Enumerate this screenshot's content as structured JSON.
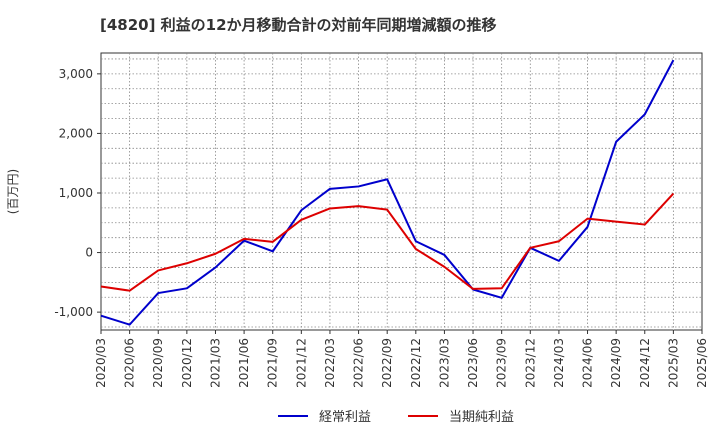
{
  "chart_data": {
    "type": "line",
    "title": "[4820]  利益の12か月移動合計の対前年同期増減額の推移",
    "ylabel": "(百万円)",
    "xlabel": "",
    "ylim": [
      -1300,
      3350
    ],
    "yticks": [
      -1000,
      0,
      1000,
      2000,
      3000
    ],
    "ytick_labels": [
      "-1,000",
      "0",
      "1,000",
      "2,000",
      "3,000"
    ],
    "categories": [
      "2020/03",
      "2020/06",
      "2020/09",
      "2020/12",
      "2021/03",
      "2021/06",
      "2021/09",
      "2021/12",
      "2022/03",
      "2022/06",
      "2022/09",
      "2022/12",
      "2023/03",
      "2023/06",
      "2023/09",
      "2023/12",
      "2024/03",
      "2024/06",
      "2024/09",
      "2024/12",
      "2025/03",
      "2025/06"
    ],
    "grid": true,
    "legend_position": "bottom",
    "series": [
      {
        "name": "経常利益",
        "color": "#0000cc",
        "values": [
          -1060,
          -1210,
          -680,
          -600,
          -250,
          200,
          20,
          710,
          1070,
          1110,
          1230,
          190,
          -40,
          -620,
          -760,
          80,
          -140,
          430,
          1860,
          2320,
          3230,
          null
        ]
      },
      {
        "name": "当期純利益",
        "color": "#dd0000",
        "values": [
          -570,
          -640,
          -300,
          -180,
          -20,
          230,
          180,
          550,
          740,
          780,
          720,
          60,
          -240,
          -610,
          -600,
          80,
          190,
          570,
          520,
          470,
          990,
          null
        ]
      }
    ]
  }
}
